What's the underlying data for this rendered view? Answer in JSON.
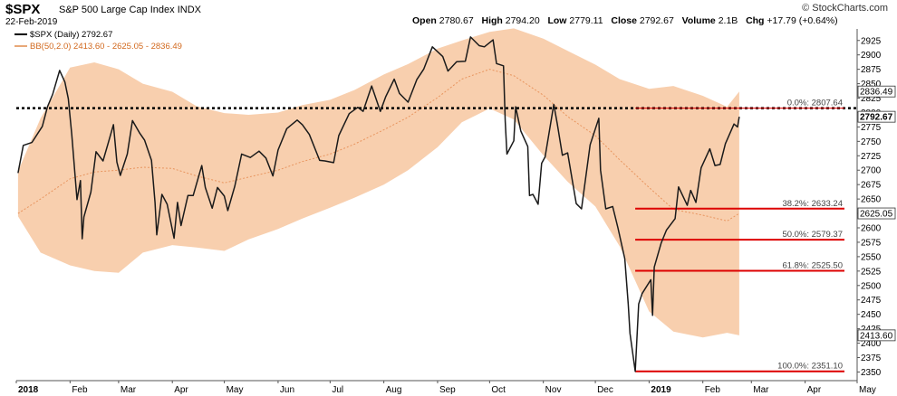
{
  "header": {
    "symbol": "$SPX",
    "name": "S&P 500 Large Cap Index",
    "exchange": "INDX",
    "date": "22-Feb-2019",
    "brand": "© StockCharts.com",
    "open_label": "Open",
    "open": "2780.67",
    "high_label": "High",
    "high": "2794.20",
    "low_label": "Low",
    "low": "2779.11",
    "close_label": "Close",
    "close": "2792.67",
    "volume_label": "Volume",
    "volume": "2.1B",
    "chg_label": "Chg",
    "chg": "+17.79 (+0.64%)"
  },
  "legend": {
    "price": "$SPX (Daily) 2792.67",
    "bb": "BB(50,2.0) 2413.60 - 2625.05 - 2836.49"
  },
  "colors": {
    "price": "#1a1a1a",
    "band_fill": "#f8cfae",
    "band_mid": "#e8955f",
    "fib": "#dd0000",
    "dotted": "#000000"
  },
  "chart_data": {
    "type": "line",
    "title": "$SPX S&P 500 Large Cap Index",
    "ylim": [
      2335,
      2945
    ],
    "yticks": [
      2350,
      2375,
      2400,
      2425,
      2450,
      2475,
      2500,
      2525,
      2550,
      2575,
      2600,
      2625,
      2650,
      2675,
      2700,
      2725,
      2750,
      2775,
      2800,
      2825,
      2850,
      2875,
      2900,
      2925
    ],
    "xlim": [
      "2018-01-01",
      "2019-05-01"
    ],
    "x_ticks": [
      {
        "date": "2018-01-01",
        "label": "2018",
        "bold": true
      },
      {
        "date": "2018-02-01",
        "label": "Feb"
      },
      {
        "date": "2018-03-01",
        "label": "Mar"
      },
      {
        "date": "2018-04-01",
        "label": "Apr"
      },
      {
        "date": "2018-05-01",
        "label": "May"
      },
      {
        "date": "2018-06-01",
        "label": "Jun"
      },
      {
        "date": "2018-07-01",
        "label": "Jul"
      },
      {
        "date": "2018-08-01",
        "label": "Aug"
      },
      {
        "date": "2018-09-01",
        "label": "Sep"
      },
      {
        "date": "2018-10-01",
        "label": "Oct"
      },
      {
        "date": "2018-11-01",
        "label": "Nov"
      },
      {
        "date": "2018-12-01",
        "label": "Dec"
      },
      {
        "date": "2019-01-01",
        "label": "2019",
        "bold": true
      },
      {
        "date": "2019-02-01",
        "label": "Feb"
      },
      {
        "date": "2019-03-01",
        "label": "Mar"
      },
      {
        "date": "2019-04-01",
        "label": "Apr"
      },
      {
        "date": "2019-05-01",
        "label": "May"
      }
    ],
    "price": [
      [
        "2018-01-02",
        2695
      ],
      [
        "2018-01-05",
        2743
      ],
      [
        "2018-01-10",
        2748
      ],
      [
        "2018-01-16",
        2776
      ],
      [
        "2018-01-19",
        2810
      ],
      [
        "2018-01-22",
        2832
      ],
      [
        "2018-01-26",
        2873
      ],
      [
        "2018-01-29",
        2853
      ],
      [
        "2018-01-31",
        2824
      ],
      [
        "2018-02-02",
        2762
      ],
      [
        "2018-02-05",
        2649
      ],
      [
        "2018-02-07",
        2682
      ],
      [
        "2018-02-08",
        2581
      ],
      [
        "2018-02-09",
        2619
      ],
      [
        "2018-02-13",
        2662
      ],
      [
        "2018-02-16",
        2732
      ],
      [
        "2018-02-20",
        2716
      ],
      [
        "2018-02-23",
        2747
      ],
      [
        "2018-02-26",
        2779
      ],
      [
        "2018-02-28",
        2714
      ],
      [
        "2018-03-02",
        2691
      ],
      [
        "2018-03-06",
        2728
      ],
      [
        "2018-03-09",
        2786
      ],
      [
        "2018-03-13",
        2765
      ],
      [
        "2018-03-16",
        2752
      ],
      [
        "2018-03-20",
        2717
      ],
      [
        "2018-03-22",
        2644
      ],
      [
        "2018-03-23",
        2588
      ],
      [
        "2018-03-26",
        2658
      ],
      [
        "2018-03-29",
        2641
      ],
      [
        "2018-04-02",
        2582
      ],
      [
        "2018-04-04",
        2644
      ],
      [
        "2018-04-06",
        2604
      ],
      [
        "2018-04-10",
        2656
      ],
      [
        "2018-04-13",
        2656
      ],
      [
        "2018-04-18",
        2708
      ],
      [
        "2018-04-20",
        2670
      ],
      [
        "2018-04-24",
        2634
      ],
      [
        "2018-04-27",
        2670
      ],
      [
        "2018-05-01",
        2655
      ],
      [
        "2018-05-03",
        2630
      ],
      [
        "2018-05-07",
        2672
      ],
      [
        "2018-05-11",
        2728
      ],
      [
        "2018-05-16",
        2722
      ],
      [
        "2018-05-21",
        2733
      ],
      [
        "2018-05-25",
        2721
      ],
      [
        "2018-05-29",
        2690
      ],
      [
        "2018-06-01",
        2735
      ],
      [
        "2018-06-06",
        2772
      ],
      [
        "2018-06-12",
        2787
      ],
      [
        "2018-06-15",
        2779
      ],
      [
        "2018-06-19",
        2762
      ],
      [
        "2018-06-25",
        2717
      ],
      [
        "2018-06-28",
        2716
      ],
      [
        "2018-07-03",
        2713
      ],
      [
        "2018-07-06",
        2760
      ],
      [
        "2018-07-12",
        2798
      ],
      [
        "2018-07-17",
        2809
      ],
      [
        "2018-07-20",
        2802
      ],
      [
        "2018-07-25",
        2846
      ],
      [
        "2018-07-30",
        2802
      ],
      [
        "2018-08-02",
        2827
      ],
      [
        "2018-08-07",
        2858
      ],
      [
        "2018-08-10",
        2833
      ],
      [
        "2018-08-15",
        2818
      ],
      [
        "2018-08-20",
        2857
      ],
      [
        "2018-08-24",
        2875
      ],
      [
        "2018-08-29",
        2914
      ],
      [
        "2018-09-04",
        2897
      ],
      [
        "2018-09-07",
        2872
      ],
      [
        "2018-09-12",
        2888
      ],
      [
        "2018-09-17",
        2889
      ],
      [
        "2018-09-20",
        2931
      ],
      [
        "2018-09-25",
        2916
      ],
      [
        "2018-09-28",
        2914
      ],
      [
        "2018-10-03",
        2926
      ],
      [
        "2018-10-05",
        2885
      ],
      [
        "2018-10-09",
        2881
      ],
      [
        "2018-10-10",
        2785
      ],
      [
        "2018-10-11",
        2728
      ],
      [
        "2018-10-15",
        2751
      ],
      [
        "2018-10-16",
        2810
      ],
      [
        "2018-10-19",
        2768
      ],
      [
        "2018-10-23",
        2741
      ],
      [
        "2018-10-24",
        2656
      ],
      [
        "2018-10-26",
        2658
      ],
      [
        "2018-10-29",
        2641
      ],
      [
        "2018-10-31",
        2712
      ],
      [
        "2018-11-02",
        2723
      ],
      [
        "2018-11-07",
        2814
      ],
      [
        "2018-11-09",
        2781
      ],
      [
        "2018-11-12",
        2726
      ],
      [
        "2018-11-15",
        2730
      ],
      [
        "2018-11-20",
        2642
      ],
      [
        "2018-11-23",
        2633
      ],
      [
        "2018-11-28",
        2744
      ],
      [
        "2018-12-03",
        2790
      ],
      [
        "2018-12-04",
        2700
      ],
      [
        "2018-12-07",
        2633
      ],
      [
        "2018-12-11",
        2637
      ],
      [
        "2018-12-14",
        2600
      ],
      [
        "2018-12-18",
        2546
      ],
      [
        "2018-12-20",
        2467
      ],
      [
        "2018-12-21",
        2417
      ],
      [
        "2018-12-24",
        2351
      ],
      [
        "2018-12-26",
        2468
      ],
      [
        "2018-12-28",
        2486
      ],
      [
        "2019-01-02",
        2510
      ],
      [
        "2019-01-03",
        2448
      ],
      [
        "2019-01-04",
        2532
      ],
      [
        "2019-01-08",
        2574
      ],
      [
        "2019-01-11",
        2596
      ],
      [
        "2019-01-16",
        2616
      ],
      [
        "2019-01-18",
        2671
      ],
      [
        "2019-01-23",
        2639
      ],
      [
        "2019-01-25",
        2665
      ],
      [
        "2019-01-28",
        2644
      ],
      [
        "2019-01-31",
        2704
      ],
      [
        "2019-02-05",
        2737
      ],
      [
        "2019-02-08",
        2708
      ],
      [
        "2019-02-11",
        2710
      ],
      [
        "2019-02-14",
        2746
      ],
      [
        "2019-02-19",
        2780
      ],
      [
        "2019-02-21",
        2775
      ],
      [
        "2019-02-22",
        2792.67
      ]
    ],
    "bb_upper": [
      [
        "2018-01-02",
        2698
      ],
      [
        "2018-01-15",
        2790
      ],
      [
        "2018-02-01",
        2878
      ],
      [
        "2018-02-15",
        2887
      ],
      [
        "2018-03-01",
        2875
      ],
      [
        "2018-03-15",
        2850
      ],
      [
        "2018-04-01",
        2836
      ],
      [
        "2018-04-15",
        2811
      ],
      [
        "2018-05-01",
        2799
      ],
      [
        "2018-05-15",
        2796
      ],
      [
        "2018-06-01",
        2800
      ],
      [
        "2018-06-15",
        2813
      ],
      [
        "2018-07-01",
        2822
      ],
      [
        "2018-07-15",
        2839
      ],
      [
        "2018-08-01",
        2866
      ],
      [
        "2018-08-15",
        2884
      ],
      [
        "2018-09-01",
        2911
      ],
      [
        "2018-09-15",
        2925
      ],
      [
        "2018-10-01",
        2940
      ],
      [
        "2018-10-15",
        2946
      ],
      [
        "2018-11-01",
        2928
      ],
      [
        "2018-11-15",
        2907
      ],
      [
        "2018-12-01",
        2883
      ],
      [
        "2018-12-15",
        2858
      ],
      [
        "2019-01-01",
        2841
      ],
      [
        "2019-01-15",
        2846
      ],
      [
        "2019-02-01",
        2829
      ],
      [
        "2019-02-15",
        2810
      ],
      [
        "2019-02-22",
        2836.49
      ]
    ],
    "bb_mid": [
      [
        "2018-01-02",
        2625
      ],
      [
        "2018-01-15",
        2650
      ],
      [
        "2018-02-01",
        2685
      ],
      [
        "2018-02-15",
        2697
      ],
      [
        "2018-03-01",
        2700
      ],
      [
        "2018-03-15",
        2705
      ],
      [
        "2018-04-01",
        2703
      ],
      [
        "2018-04-15",
        2690
      ],
      [
        "2018-05-01",
        2678
      ],
      [
        "2018-05-15",
        2688
      ],
      [
        "2018-06-01",
        2700
      ],
      [
        "2018-06-15",
        2715
      ],
      [
        "2018-07-01",
        2728
      ],
      [
        "2018-07-15",
        2745
      ],
      [
        "2018-08-01",
        2770
      ],
      [
        "2018-08-15",
        2792
      ],
      [
        "2018-09-01",
        2826
      ],
      [
        "2018-09-15",
        2858
      ],
      [
        "2018-10-01",
        2875
      ],
      [
        "2018-10-15",
        2864
      ],
      [
        "2018-11-01",
        2830
      ],
      [
        "2018-11-15",
        2793
      ],
      [
        "2018-12-01",
        2760
      ],
      [
        "2018-12-15",
        2718
      ],
      [
        "2019-01-01",
        2670
      ],
      [
        "2019-01-15",
        2632
      ],
      [
        "2019-02-01",
        2622
      ],
      [
        "2019-02-15",
        2612
      ],
      [
        "2019-02-22",
        2625.05
      ]
    ],
    "bb_lower": [
      [
        "2018-01-02",
        2620
      ],
      [
        "2018-01-15",
        2557
      ],
      [
        "2018-02-01",
        2535
      ],
      [
        "2018-02-15",
        2525
      ],
      [
        "2018-03-01",
        2522
      ],
      [
        "2018-03-15",
        2557
      ],
      [
        "2018-04-01",
        2570
      ],
      [
        "2018-04-15",
        2566
      ],
      [
        "2018-05-01",
        2560
      ],
      [
        "2018-05-15",
        2580
      ],
      [
        "2018-06-01",
        2598
      ],
      [
        "2018-06-15",
        2616
      ],
      [
        "2018-07-01",
        2635
      ],
      [
        "2018-07-15",
        2652
      ],
      [
        "2018-08-01",
        2675
      ],
      [
        "2018-08-15",
        2700
      ],
      [
        "2018-09-01",
        2740
      ],
      [
        "2018-09-15",
        2783
      ],
      [
        "2018-10-01",
        2807
      ],
      [
        "2018-10-15",
        2788
      ],
      [
        "2018-11-01",
        2726
      ],
      [
        "2018-11-15",
        2680
      ],
      [
        "2018-12-01",
        2637
      ],
      [
        "2018-12-15",
        2568
      ],
      [
        "2019-01-01",
        2455
      ],
      [
        "2019-01-15",
        2420
      ],
      [
        "2019-02-01",
        2410
      ],
      [
        "2019-02-15",
        2418
      ],
      [
        "2019-02-22",
        2413.6
      ]
    ],
    "dotted_level": 2807.64,
    "fib_levels": [
      {
        "value": 2807.64,
        "label": "0.0%: 2807.64",
        "line": false
      },
      {
        "value": 2633.24,
        "label": "38.2%: 2633.24",
        "line": true
      },
      {
        "value": 2579.37,
        "label": "50.0%: 2579.37",
        "line": true
      },
      {
        "value": 2525.5,
        "label": "61.8%: 2525.50",
        "line": true
      },
      {
        "value": 2351.1,
        "label": "100.0%: 2351.10",
        "line": true
      }
    ],
    "fib_start": "2018-12-24",
    "fib_end": "2019-05-01",
    "price_tags": [
      {
        "value": 2836.49,
        "label": "2836.49",
        "bold": false
      },
      {
        "value": 2792.67,
        "label": "2792.67",
        "bold": true
      },
      {
        "value": 2625.05,
        "label": "2625.05",
        "bold": false
      },
      {
        "value": 2413.6,
        "label": "2413.60",
        "bold": false
      }
    ]
  }
}
